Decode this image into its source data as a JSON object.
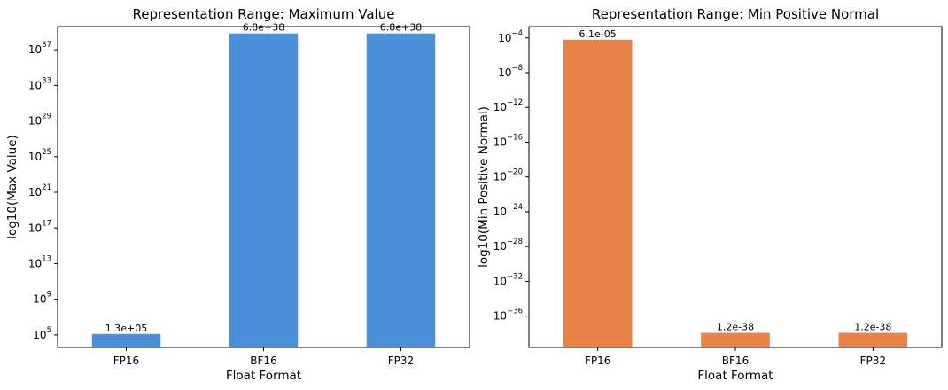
{
  "chart_data": [
    {
      "type": "bar",
      "title": "Representation Range: Maximum Value",
      "xlabel": "Float Format",
      "ylabel": "log10(Max Value)",
      "yscale": "log",
      "categories": [
        "FP16",
        "BF16",
        "FP32"
      ],
      "values": [
        130000,
        6.8e+38,
        6.8e+38
      ],
      "data_labels": [
        "1.3e+05",
        "6.8e+38",
        "6.8e+38"
      ],
      "ytick_exponents": [
        5,
        9,
        13,
        17,
        21,
        25,
        29,
        33,
        37
      ],
      "ylim_log10": [
        3.6,
        39.6
      ],
      "color": "#4a90d9",
      "grid": false,
      "legend": "none"
    },
    {
      "type": "bar",
      "title": "Representation Range: Min Positive Normal",
      "xlabel": "Float Format",
      "ylabel": "log10(Min Positive Normal)",
      "yscale": "log",
      "categories": [
        "FP16",
        "BF16",
        "FP32"
      ],
      "values": [
        6.1e-05,
        1.2e-38,
        1.2e-38
      ],
      "data_labels": [
        "6.1e-05",
        "1.2e-38",
        "1.2e-38"
      ],
      "ytick_exponents": [
        -4,
        -8,
        -12,
        -16,
        -20,
        -24,
        -28,
        -32,
        -36
      ],
      "ylim_log10": [
        -39.6,
        -2.7
      ],
      "color": "#e8844a",
      "grid": false,
      "legend": "none"
    }
  ]
}
